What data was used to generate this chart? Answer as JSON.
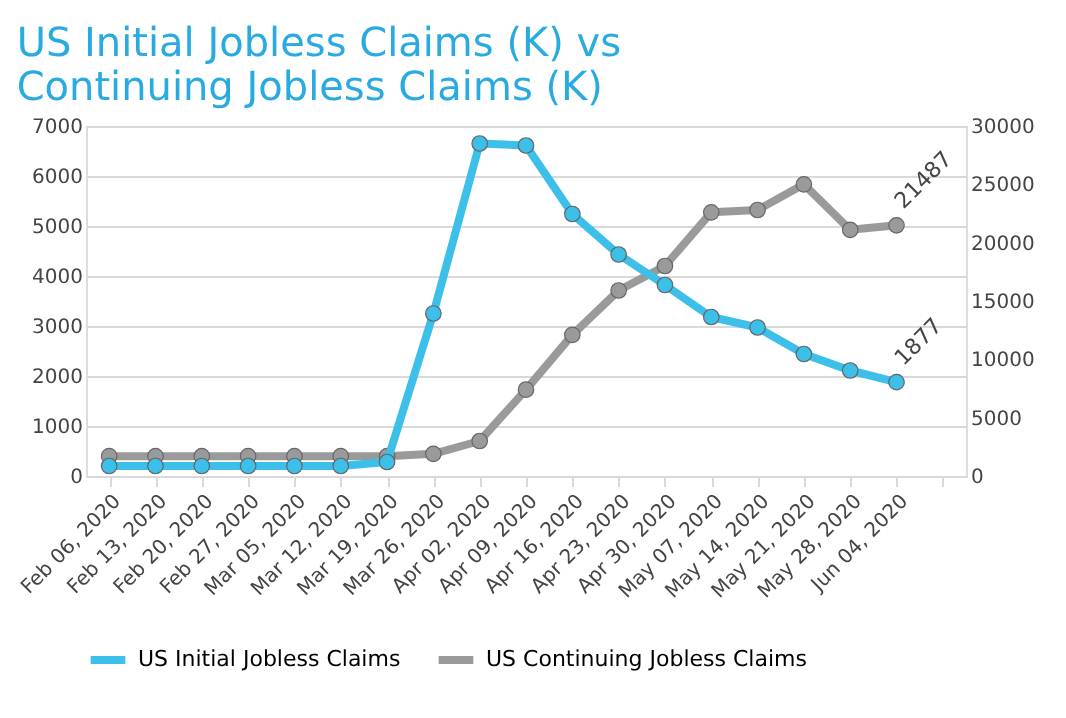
{
  "chart_data": {
    "type": "line",
    "title": "US Initial Jobless Claims (K) vs Continuing Jobless Claims (K)",
    "categories": [
      "Feb 06, 2020",
      "Feb 13, 2020",
      "Feb 20, 2020",
      "Feb 27, 2020",
      "Mar 05, 2020",
      "Mar 12, 2020",
      "Mar 19, 2020",
      "Mar 26, 2020",
      "Apr 02, 2020",
      "Apr 09, 2020",
      "Apr 16, 2020",
      "Apr 23, 2020",
      "Apr 30, 2020",
      "May 07, 2020",
      "May 14, 2020",
      "May 21, 2020",
      "May 28, 2020",
      "Jun 04, 2020",
      null
    ],
    "series": [
      {
        "name": "US Initial Jobless Claims",
        "color": "#3cbfe8",
        "values": [
          200,
          200,
          200,
          200,
          200,
          200,
          280,
          3250,
          6650,
          6610,
          5240,
          4430,
          3820,
          3180,
          2970,
          2440,
          2110,
          1877,
          null
        ],
        "value_labels": [
          null,
          null,
          null,
          null,
          null,
          null,
          null,
          null,
          null,
          null,
          null,
          null,
          null,
          null,
          null,
          null,
          null,
          "1877",
          null
        ]
      },
      {
        "name": "US Continuing Jobless Claims",
        "color": "#9a9a9a",
        "axis": "y2",
        "values": [
          1700,
          1700,
          1700,
          1700,
          1700,
          1700,
          1700,
          1900,
          3000,
          7400,
          12100,
          15900,
          18000,
          22600,
          22800,
          25000,
          21100,
          21487,
          null
        ],
        "value_labels": [
          null,
          null,
          null,
          null,
          null,
          null,
          null,
          null,
          null,
          null,
          null,
          null,
          null,
          null,
          null,
          null,
          null,
          "21487",
          null
        ]
      }
    ],
    "ylim": [
      0,
      7000
    ],
    "yticks": [
      0,
      1000,
      2000,
      3000,
      4000,
      5000,
      6000,
      7000
    ],
    "y2lim": [
      0,
      30000
    ],
    "y2ticks": [
      0,
      5000,
      10000,
      15000,
      20000,
      25000,
      30000
    ],
    "grid": "y",
    "legend": "bottom",
    "marker": "circle",
    "line_style": "solid"
  }
}
